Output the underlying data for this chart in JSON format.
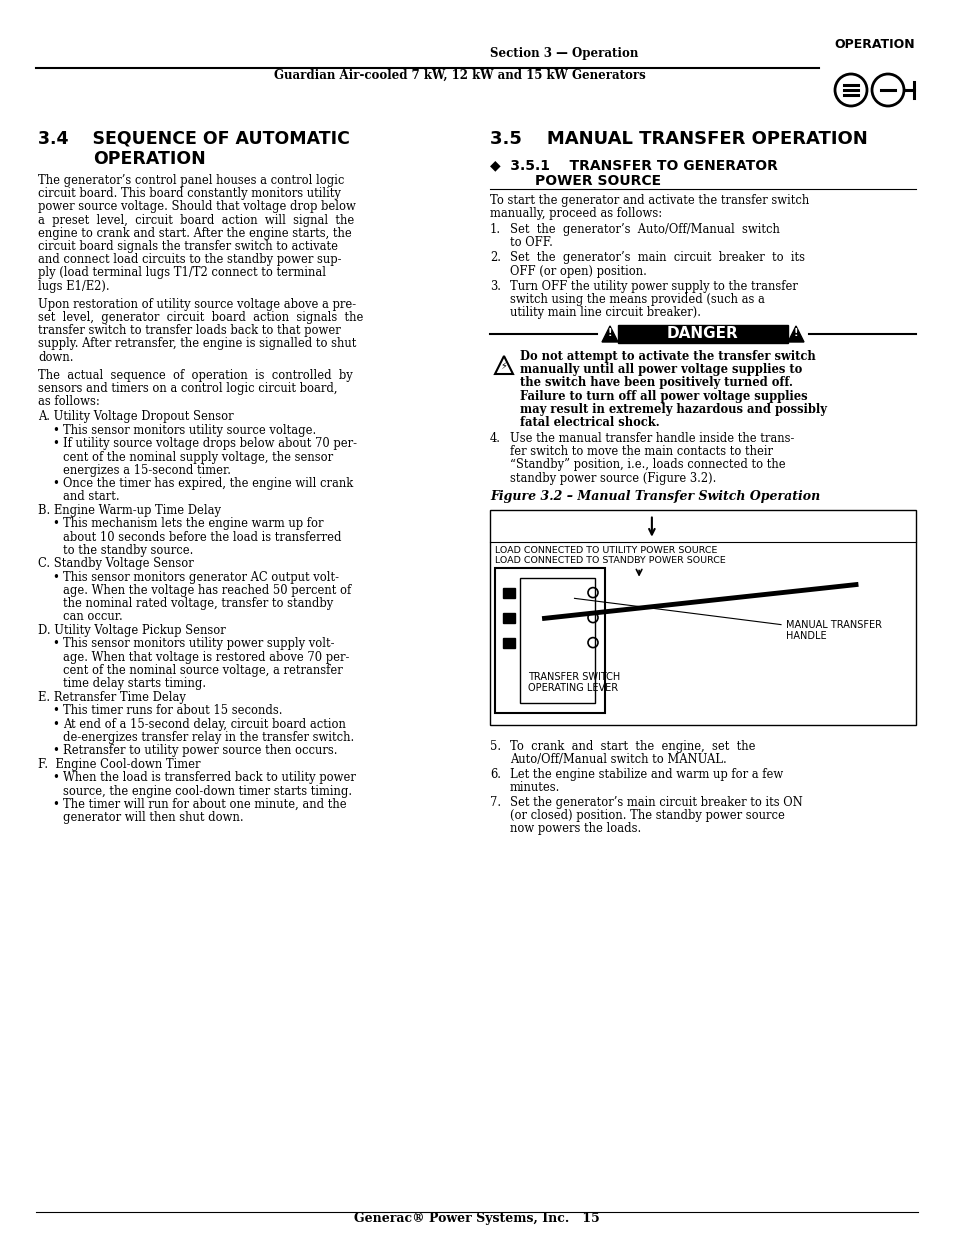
{
  "bg_color": "#ffffff",
  "header_section": "Section 3 — Operation",
  "header_subtitle": "Guardian Air-cooled 7 kW, 12 kW and 15 kW Generators",
  "header_label": "OPERATION",
  "fig_title": "Figure 3.2 – Manual Transfer Switch Operation",
  "fig_label1": "LOAD CONNECTED TO UTILITY POWER SOURCE",
  "fig_label2": "LOAD CONNECTED TO STANDBY POWER SOURCE",
  "fig_label3": "MANUAL TRANSFER\nHANDLE",
  "fig_label4": "TRANSFER SWITCH\nOPERATING LEVER",
  "footer": "Generac® Power Systems, Inc.   15"
}
